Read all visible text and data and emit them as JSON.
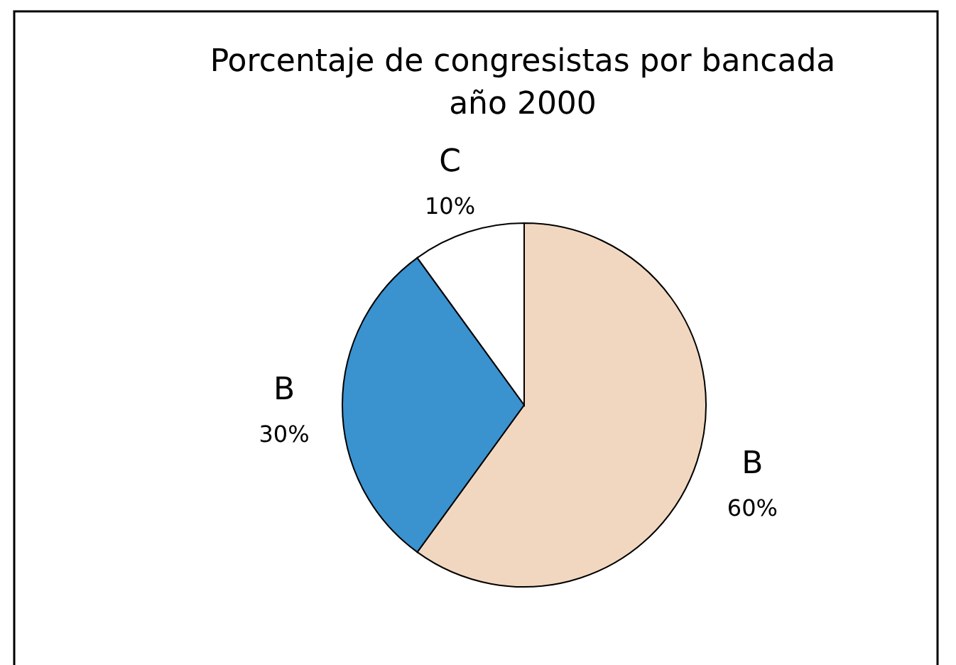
{
  "chart_data": {
    "type": "pie",
    "title": "Porcentaje de congresistas por bancada\naño 2000",
    "categories": [
      "B",
      "B",
      "C"
    ],
    "values": [
      60,
      30,
      10
    ],
    "colors": [
      "#f2d7c0",
      "#3a92cf",
      "#ffffff"
    ],
    "value_labels": [
      "60%",
      "30%",
      "10%"
    ]
  }
}
